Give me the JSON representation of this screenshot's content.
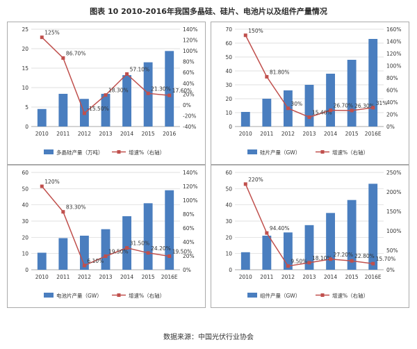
{
  "page": {
    "title": "图表 10  2010-2016年我国多晶硅、硅片、电池片以及组件产量情况",
    "source": "数据来源：中国光伏行业协会"
  },
  "colors": {
    "bar": "#4a7ebf",
    "line": "#c0504d",
    "grid": "#d4d4d4"
  },
  "chart_data": [
    {
      "type": "bar",
      "categories": [
        "2010",
        "2011",
        "2012",
        "2013",
        "2014",
        "2015",
        "2016"
      ],
      "values": [
        4.5,
        8.4,
        7.1,
        8.4,
        13.2,
        16.5,
        19.4
      ],
      "ylim": [
        0,
        25
      ],
      "yticks": [
        "0",
        "5",
        "10",
        "15",
        "20",
        "25"
      ],
      "line": {
        "values": [
          125,
          86.7,
          -15.5,
          18.3,
          57.1,
          21.3,
          17.6
        ],
        "labels": [
          "125%",
          "86.70%",
          "-15.50%",
          "18.30%",
          "57.10%",
          "21.30%",
          "17.60%"
        ],
        "ylim": [
          -40,
          140
        ],
        "yticks": [
          "-40%",
          "-20%",
          "0%",
          "20%",
          "40%",
          "60%",
          "80%",
          "100%",
          "120%",
          "140%"
        ]
      },
      "legend_bar": "多晶硅产量（万吨）",
      "legend_line": "增速%（右轴）"
    },
    {
      "type": "bar",
      "categories": [
        "2010",
        "2011",
        "2012",
        "2013",
        "2014",
        "2015",
        "2016E"
      ],
      "values": [
        10.5,
        20,
        26,
        30,
        38,
        48,
        63
      ],
      "ylim": [
        0,
        70
      ],
      "yticks": [
        "0",
        "10",
        "20",
        "30",
        "40",
        "50",
        "60",
        "70"
      ],
      "line": {
        "values": [
          150,
          81.8,
          30,
          15.4,
          26.7,
          26.3,
          31
        ],
        "labels": [
          "150%",
          "81.80%",
          "30%",
          "15.40%",
          "26.70%",
          "26.30%",
          "31%"
        ],
        "ylim": [
          0,
          160
        ],
        "yticks": [
          "0%",
          "20%",
          "40%",
          "60%",
          "80%",
          "100%",
          "120%",
          "140%",
          "160%"
        ]
      },
      "legend_bar": "硅片产量（GW）",
      "legend_line": "增速%（右轴）"
    },
    {
      "type": "bar",
      "categories": [
        "2010",
        "2011",
        "2012",
        "2013",
        "2014",
        "2015",
        "2016E"
      ],
      "values": [
        10.5,
        19.5,
        21,
        25,
        33,
        41,
        49
      ],
      "ylim": [
        0,
        60
      ],
      "yticks": [
        "0",
        "10",
        "20",
        "30",
        "40",
        "50",
        "60"
      ],
      "line": {
        "values": [
          120,
          83.3,
          6.1,
          19.5,
          31.5,
          24.2,
          19.5
        ],
        "labels": [
          "120%",
          "83.30%",
          "6.10%",
          "19.50%",
          "31.50%",
          "24.20%",
          "19.50%"
        ],
        "ylim": [
          0,
          140
        ],
        "yticks": [
          "0%",
          "20%",
          "40%",
          "60%",
          "80%",
          "100%",
          "120%",
          "140%"
        ]
      },
      "legend_bar": "电池片产量（GW）",
      "legend_line": "增速%（右轴）"
    },
    {
      "type": "bar",
      "categories": [
        "2010",
        "2011",
        "2012",
        "2013",
        "2014",
        "2015",
        "2016E"
      ],
      "values": [
        10.8,
        21,
        23,
        27.5,
        35,
        43,
        53
      ],
      "ylim": [
        0,
        60
      ],
      "yticks": [
        "0",
        "10",
        "20",
        "30",
        "40",
        "50",
        "60"
      ],
      "line": {
        "values": [
          220,
          94.4,
          9.5,
          18.1,
          27.2,
          22.8,
          15.7
        ],
        "labels": [
          "220%",
          "94.40%",
          "9.50%",
          "18.10%",
          "27.20%",
          "22.80%",
          "15.70%"
        ],
        "ylim": [
          0,
          250
        ],
        "yticks": [
          "0%",
          "50%",
          "100%",
          "150%",
          "200%",
          "250%"
        ]
      },
      "legend_bar": "组件产量（GW）",
      "legend_line": "增速%（右轴）"
    }
  ]
}
